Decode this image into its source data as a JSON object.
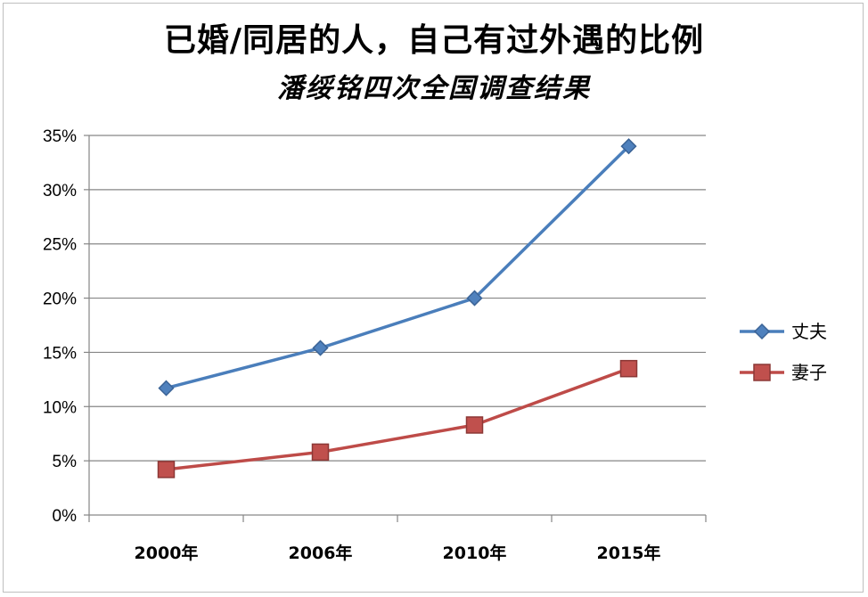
{
  "chart_data": {
    "type": "line",
    "title": "已婚/同居的人，自己有过外遇的比例",
    "subtitle": "潘绥铭四次全国调查结果",
    "categories": [
      "2000年",
      "2006年",
      "2010年",
      "2015年"
    ],
    "series": [
      {
        "name": "丈夫",
        "values": [
          11.7,
          15.4,
          20.0,
          34.0
        ],
        "color": "#4a7ebb",
        "marker": "diamond"
      },
      {
        "name": "妻子",
        "values": [
          4.2,
          5.8,
          8.3,
          13.5
        ],
        "color": "#be4b48",
        "marker": "square"
      }
    ],
    "ylim": [
      0,
      35
    ],
    "yticks": [
      "0%",
      "5%",
      "10%",
      "15%",
      "20%",
      "25%",
      "30%",
      "35%"
    ],
    "xlabel": "",
    "ylabel": "",
    "grid": true,
    "legend_position": "right"
  }
}
